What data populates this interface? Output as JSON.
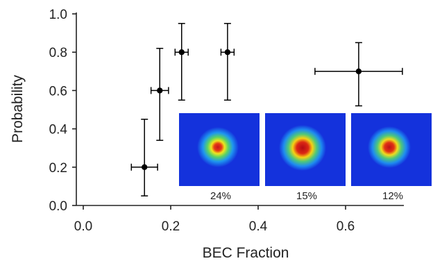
{
  "chart_data": {
    "type": "scatter",
    "title": "",
    "xlabel": "BEC Fraction",
    "ylabel": "Probability",
    "xlim": [
      0.0,
      0.72
    ],
    "ylim": [
      0.0,
      1.0
    ],
    "x_ticks": [
      0.0,
      0.2,
      0.4,
      0.6
    ],
    "x_tick_labels": [
      "0.0",
      "0.2",
      "0.4",
      "0.6"
    ],
    "y_ticks": [
      0.0,
      0.2,
      0.4,
      0.6,
      0.8,
      1.0
    ],
    "y_tick_labels": [
      "0.0",
      "0.2",
      "0.4",
      "0.6",
      "0.8",
      "1.0"
    ],
    "grid": false,
    "legend": "none",
    "point_color": "#000000",
    "points": [
      {
        "x": 0.14,
        "y": 0.2,
        "xerr": 0.03,
        "yerr_low": 0.15,
        "yerr_high": 0.25
      },
      {
        "x": 0.175,
        "y": 0.6,
        "xerr": 0.02,
        "yerr_low": 0.26,
        "yerr_high": 0.22
      },
      {
        "x": 0.225,
        "y": 0.8,
        "xerr": 0.015,
        "yerr_low": 0.25,
        "yerr_high": 0.15
      },
      {
        "x": 0.33,
        "y": 0.8,
        "xerr": 0.015,
        "yerr_low": 0.25,
        "yerr_high": 0.15
      },
      {
        "x": 0.63,
        "y": 0.7,
        "xerr": 0.1,
        "yerr_low": 0.18,
        "yerr_high": 0.15
      }
    ],
    "insets": [
      {
        "label": "24%",
        "core_color": "#c8141e",
        "halo_color": "#f0e61e"
      },
      {
        "label": "15%",
        "core_color": "#b40a14",
        "halo_color": "#f5d214"
      },
      {
        "label": "12%",
        "core_color": "#be0f19",
        "halo_color": "#f0dc1e"
      }
    ],
    "inset_background": "#1432dc"
  }
}
